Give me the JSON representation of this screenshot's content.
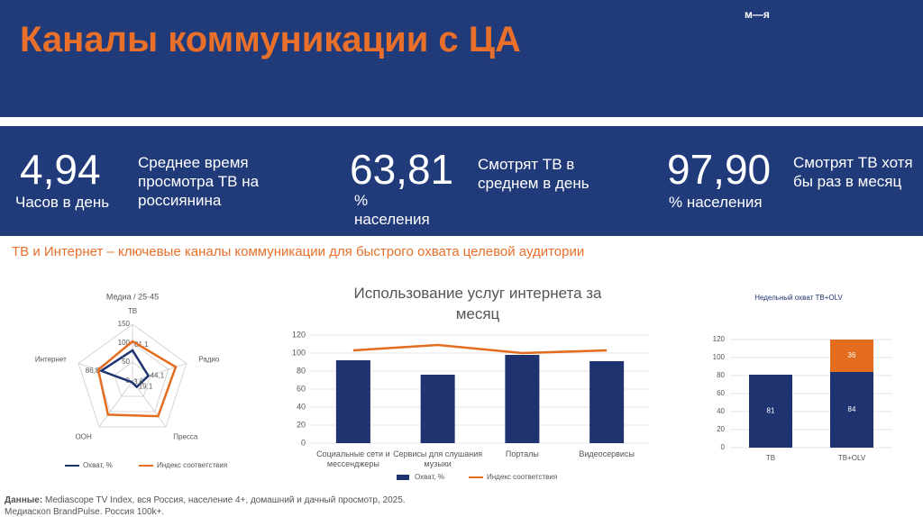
{
  "header": {
    "title": "Каналы коммуникации с ЦА",
    "logo": "м—я"
  },
  "stats": [
    {
      "value": "4,94",
      "unit": "Часов в день",
      "text": "Среднее время просмотра ТВ на россиянина"
    },
    {
      "value": "63,81",
      "unit": "% населения",
      "text": "Смотрят ТВ в среднем в день"
    },
    {
      "value": "97,90",
      "unit": "% населения",
      "text": "Смотрят ТВ хотя бы раз в месяц"
    }
  ],
  "subtitle": "ТВ и Интернет – ключевые каналы коммуникации для быстрого охвата целевой аудитории",
  "chart_data": [
    {
      "type": "radar",
      "title": "Медиа / 25-45",
      "categories": [
        "ТВ",
        "Радио",
        "Пресса",
        "OOH",
        "Интернет"
      ],
      "ylim": [
        0,
        150
      ],
      "yticks": [
        0,
        50,
        100,
        150
      ],
      "series": [
        {
          "name": "Охват, %",
          "color": "#1f3370",
          "values": [
            81.1,
            44.1,
            19.1,
            3.6,
            86.8
          ],
          "value_labels": [
            "81,1",
            "44,1",
            "19,1",
            "3,6",
            "86,8"
          ]
        },
        {
          "name": "Индекс соответствия",
          "color": "#e36c1e",
          "values": [
            105,
            120,
            115,
            110,
            95
          ]
        }
      ]
    },
    {
      "type": "bar_line",
      "title": "Использование услуг интернета за месяц",
      "categories": [
        "Социальные сети и мессенджеры",
        "Сервисы для слушания музыки",
        "Порталы",
        "Видеосервисы"
      ],
      "ylim": [
        0,
        120
      ],
      "yticks": [
        0,
        20,
        40,
        60,
        80,
        100,
        120
      ],
      "grid": true,
      "series": [
        {
          "name": "Охват, %",
          "color": "#1f3370",
          "values": [
            92,
            76,
            98,
            91
          ]
        },
        {
          "name": "Индекс соответствия",
          "color": "#e36c1e",
          "values": [
            103,
            109,
            100,
            103
          ]
        }
      ]
    },
    {
      "type": "stacked_bar",
      "title": "Недельный охват ТВ+OLV",
      "categories": [
        "ТВ",
        "ТВ+OLV"
      ],
      "ylim": [
        0,
        120
      ],
      "yticks": [
        0,
        20,
        40,
        60,
        80,
        100,
        120
      ],
      "grid": true,
      "series": [
        {
          "color": "#1f3370",
          "values": [
            81,
            84
          ]
        },
        {
          "color": "#e36c1e",
          "values": [
            null,
            36
          ]
        }
      ]
    }
  ],
  "footer": {
    "label": "Данные:",
    "line1": "Mediascope TV Index, вся Россия, население 4+, домашний и дачный просмотр, 2025.",
    "line2": "Медиаскоп BrandPulse. Россия 100k+."
  }
}
